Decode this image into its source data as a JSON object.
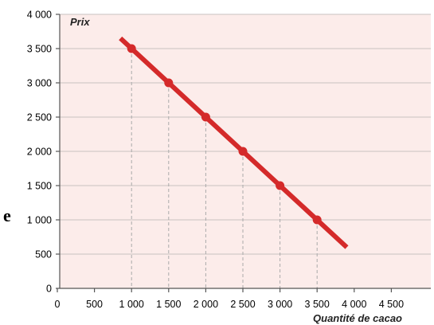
{
  "chart_data": {
    "type": "line",
    "title": "",
    "ylabel": "Prix",
    "xlabel": "Quantité de cacao",
    "xlim": [
      0,
      5000
    ],
    "ylim": [
      0,
      4000
    ],
    "x_ticks": [
      0,
      500,
      1000,
      1500,
      2000,
      2500,
      3000,
      3500,
      4000,
      4500
    ],
    "x_tick_labels": [
      "0",
      "500",
      "1 000",
      "1 500",
      "2 000",
      "2 500",
      "3 000",
      "3 500",
      "4 000",
      "4 500"
    ],
    "y_ticks": [
      0,
      500,
      1000,
      1500,
      2000,
      2500,
      3000,
      3500,
      4000
    ],
    "y_tick_labels": [
      "0",
      "500",
      "1 000",
      "1 500",
      "2 000",
      "2 500",
      "3 000",
      "3 500",
      "4 000"
    ],
    "grid": "horizontal",
    "series": [
      {
        "line": {
          "x": [
            850,
            3900
          ],
          "y": [
            3650,
            600
          ]
        },
        "points": [
          {
            "x": 1000,
            "y": 3500
          },
          {
            "x": 1500,
            "y": 3000
          },
          {
            "x": 2000,
            "y": 2500
          },
          {
            "x": 2500,
            "y": 2000
          },
          {
            "x": 3000,
            "y": 1500
          },
          {
            "x": 3500,
            "y": 1000
          }
        ]
      }
    ],
    "stray_text": "e",
    "colors": {
      "background": "#fcecea",
      "line": "#d42a2a",
      "grid": "#c9c2c0",
      "axis": "#555555",
      "dropline": "#aaaaaa"
    }
  }
}
